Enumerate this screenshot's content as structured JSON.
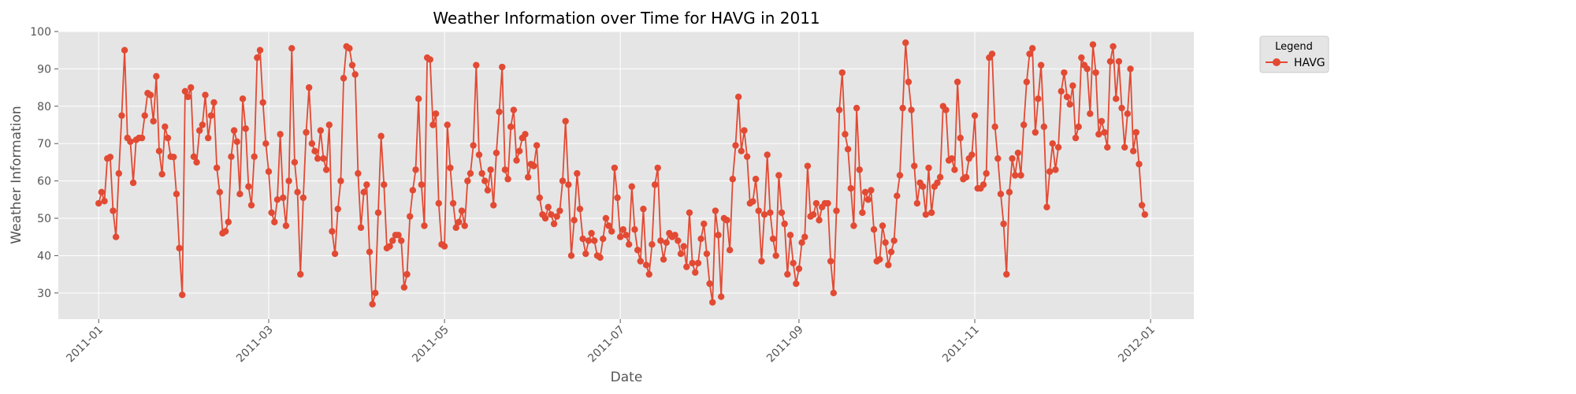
{
  "chart_data": {
    "type": "line",
    "title": "Weather Information over Time for HAVG in 2011",
    "xlabel": "Date",
    "ylabel": "Weather Information",
    "xlim": [
      "2010-12-18",
      "2012-01-16"
    ],
    "ylim": [
      23,
      100
    ],
    "grid": true,
    "legend": {
      "title": "Legend",
      "placement": "outside-top-right"
    },
    "x_ticks": [
      "2011-01",
      "2011-03",
      "2011-05",
      "2011-07",
      "2011-09",
      "2011-11",
      "2012-01"
    ],
    "y_ticks": [
      "30",
      "40",
      "50",
      "60",
      "70",
      "80",
      "90",
      "100"
    ],
    "x_start": "2011-01-01",
    "x_step": "1 day",
    "series": [
      {
        "name": "HAVG",
        "color": "#E24A33",
        "marker": "circle",
        "values": [
          54,
          57,
          54.6,
          66,
          66.4,
          52,
          45,
          62,
          77.5,
          95,
          71.5,
          70.5,
          59.5,
          71,
          71.5,
          71.5,
          77.5,
          83.5,
          83,
          76,
          88,
          68,
          61.8,
          74.5,
          71.5,
          66.5,
          66.4,
          56.5,
          42,
          29.5,
          84,
          82.5,
          85,
          66.5,
          65,
          73.5,
          75,
          83,
          71.5,
          77.5,
          81,
          63.5,
          57,
          46,
          46.5,
          49,
          66.5,
          73.5,
          70.5,
          56.5,
          82,
          74,
          58.5,
          53.5,
          66.5,
          93,
          95,
          81,
          70,
          62.5,
          51.5,
          49,
          55,
          72.5,
          55.5,
          48,
          60,
          95.5,
          65,
          57,
          35,
          55.5,
          73,
          85,
          70,
          68,
          66,
          73.5,
          66,
          63,
          75,
          46.5,
          40.5,
          52.5,
          60,
          87.5,
          96,
          95.5,
          91,
          88.5,
          62,
          47.5,
          57,
          59,
          41,
          27,
          30,
          51.5,
          72,
          59,
          42,
          42.5,
          44,
          45.5,
          45.5,
          44,
          31.5,
          35,
          50.5,
          57.5,
          63,
          82,
          59,
          48,
          93,
          92.5,
          75,
          78,
          54,
          43,
          42.5,
          75,
          63.5,
          54,
          47.5,
          49,
          52,
          48,
          60,
          62,
          69.5,
          91,
          67,
          62,
          60,
          57.5,
          63,
          53.5,
          67.5,
          78.5,
          90.5,
          63,
          60.5,
          74.5,
          79,
          65.5,
          68,
          71.5,
          72.5,
          61,
          64.5,
          64,
          69.5,
          55.5,
          51,
          50,
          53,
          51,
          48.5,
          50.5,
          52,
          60,
          76,
          59,
          40,
          49.5,
          62,
          52.5,
          44.5,
          40.5,
          44,
          46,
          44,
          40,
          39.5,
          44.5,
          50,
          48,
          46.5,
          63.5,
          55.5,
          45,
          47,
          45.5,
          43,
          58.5,
          47,
          41.5,
          38.5,
          52.5,
          37.5,
          35,
          43,
          59,
          63.5,
          44,
          39,
          43.5,
          46,
          45,
          45.5,
          44,
          40.5,
          42.5,
          37,
          51.5,
          38,
          35.5,
          38,
          44.5,
          48.5,
          40.5,
          32.5,
          27.5,
          52,
          45.5,
          29,
          50,
          49.5,
          41.5,
          60.5,
          69.5,
          82.5,
          68,
          73.5,
          66.5,
          54,
          54.5,
          60.5,
          52,
          38.5,
          51,
          67,
          51.5,
          44.5,
          40,
          61.5,
          51.5,
          48.5,
          35,
          45.5,
          38,
          32.5,
          36.5,
          43.5,
          45,
          64,
          50.5,
          51,
          54,
          49.5,
          53,
          54,
          54,
          38.5,
          30,
          52,
          79,
          89,
          72.5,
          68.5,
          58,
          48,
          79.5,
          63,
          51.5,
          57,
          55,
          57.5,
          47,
          38.5,
          39,
          48,
          43.5,
          37.5,
          41,
          44,
          56,
          61.5,
          79.5,
          97,
          86.5,
          79,
          64,
          54,
          59.5,
          58.5,
          51,
          63.5,
          51.5,
          58.5,
          59.5,
          61,
          80,
          79,
          65.5,
          66,
          63,
          86.5,
          71.5,
          60.5,
          61,
          66,
          67,
          77.5,
          58,
          58,
          59,
          62,
          93,
          94,
          74.5,
          66,
          56.5,
          48.5,
          35,
          57,
          66,
          61.5,
          67.5,
          61.5,
          75,
          86.5,
          94,
          95.5,
          73,
          82,
          91,
          74.5,
          53,
          62.5,
          70,
          63,
          69,
          84,
          89,
          82.5,
          80.5,
          85.5,
          71.5,
          74.5,
          93,
          91,
          90,
          78,
          96.5,
          89,
          72.5,
          76,
          73,
          69,
          92,
          96,
          82,
          92,
          79.5,
          69,
          78,
          90,
          68,
          73,
          64.5,
          53.5,
          51
        ]
      }
    ]
  }
}
